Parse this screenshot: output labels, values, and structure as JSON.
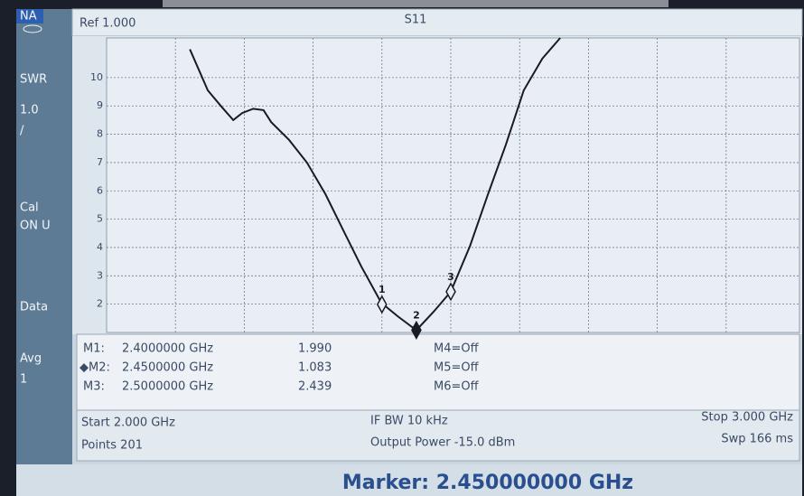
{
  "chart_data": {
    "type": "line",
    "title": "S11",
    "x": [
      2.121,
      2.147,
      2.167,
      2.184,
      2.197,
      2.213,
      2.228,
      2.239,
      2.265,
      2.291,
      2.318,
      2.344,
      2.37,
      2.399,
      2.423,
      2.45,
      2.475,
      2.5,
      2.528,
      2.554,
      2.58,
      2.606,
      2.633,
      2.659
    ],
    "series": [
      {
        "color": "#1a1a24",
        "values": [
          11.0,
          9.55,
          8.97,
          8.5,
          8.75,
          8.9,
          8.85,
          8.43,
          7.8,
          7.0,
          5.88,
          4.6,
          3.33,
          2.05,
          1.57,
          1.08,
          1.73,
          2.44,
          4.06,
          5.88,
          7.63,
          9.55,
          10.67,
          11.4
        ]
      }
    ],
    "xlim": [
      2.0,
      3.0
    ],
    "ylim": [
      1,
      11.4
    ],
    "yticks": [
      2,
      3,
      4,
      5,
      6,
      7,
      8,
      9,
      10
    ],
    "grid": true,
    "markers": [
      {
        "label": "1",
        "x": 2.4,
        "y": 1.99,
        "filled": false
      },
      {
        "label": "2",
        "x": 2.45,
        "y": 1.083,
        "filled": true
      },
      {
        "label": "3",
        "x": 2.5,
        "y": 2.439,
        "filled": false
      }
    ]
  },
  "ui": {
    "ref": "Ref 1.000",
    "sidebar": [
      "NA",
      "SWR",
      "1.0",
      "/",
      "Cal",
      "ON U",
      "Data",
      "Avg",
      "1"
    ],
    "marker_table": [
      [
        "M1:",
        "2.4000000 GHz",
        "1.990",
        "M4=Off"
      ],
      [
        "◆M2:",
        "2.4500000 GHz",
        "1.083",
        "M5=Off"
      ],
      [
        "M3:",
        "2.5000000 GHz",
        "2.439",
        "M6=Off"
      ]
    ],
    "status": {
      "start": "Start 2.000 GHz",
      "points": "Points 201",
      "ifbw": "IF BW 10 kHz",
      "power": "Output Power -15.0 dBm",
      "stop": "Stop 3.000 GHz",
      "sweep": "Swp 166 ms"
    },
    "readout": "Marker: 2.450000000 GHz"
  }
}
